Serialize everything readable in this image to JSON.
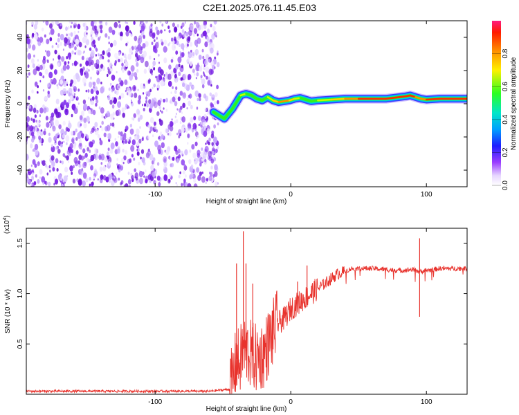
{
  "page": {
    "title": "C2E1.2025.076.11.45.E03"
  },
  "chart_data": [
    {
      "type": "heatmap",
      "title": "C2E1.2025.076.11.45.E03",
      "xlabel": "Height of straight line (km)",
      "ylabel": "Frequency (Hz)",
      "xlim": [
        -195,
        130
      ],
      "ylim": [
        -50,
        50
      ],
      "xticks": [
        -100,
        0,
        100
      ],
      "xtick_labels": [
        "-100",
        "0",
        "100"
      ],
      "yticks": [
        -40,
        -20,
        0,
        20,
        40
      ],
      "ytick_labels": [
        "-40",
        "-20",
        "0",
        "20",
        "40"
      ],
      "grid": false,
      "noise_region_x": [
        -195,
        -55
      ],
      "noise_color": "#7a22e6",
      "ridge": {
        "x": [
          -57,
          -53,
          -49,
          -46,
          -43,
          -40,
          -37,
          -33,
          -29,
          -25,
          -21,
          -17,
          -13,
          -9,
          -5,
          -1,
          3,
          7,
          11,
          15,
          20,
          30,
          40,
          50,
          60,
          70,
          80,
          85,
          88,
          92,
          96,
          100,
          110,
          120,
          130
        ],
        "y": [
          -5,
          -7,
          -9,
          -6,
          -3,
          1,
          5,
          6,
          5,
          3,
          2,
          4,
          2,
          1,
          1.5,
          2,
          3,
          3.5,
          2.5,
          1.5,
          2,
          2.5,
          3,
          3,
          3,
          3,
          4,
          4.5,
          5,
          4,
          3,
          2.5,
          3,
          3,
          3
        ],
        "amplitude": [
          0.45,
          0.55,
          0.5,
          0.55,
          0.6,
          0.55,
          0.6,
          0.6,
          0.55,
          0.6,
          0.55,
          0.6,
          0.7,
          0.85,
          0.9,
          0.85,
          0.7,
          0.55,
          0.5,
          0.55,
          0.6,
          0.7,
          0.8,
          0.9,
          0.95,
          0.95,
          0.95,
          0.95,
          1.0,
          0.9,
          0.85,
          0.9,
          0.95,
          0.95,
          0.95
        ]
      },
      "colorbar": {
        "label": "Normalized spectral amplitude",
        "range": [
          0,
          1
        ],
        "ticks": [
          0.0,
          0.2,
          0.4,
          0.6,
          0.8
        ],
        "tick_labels": [
          "0.0",
          "0.2",
          "0.4",
          "0.6",
          "0.8"
        ]
      }
    },
    {
      "type": "line",
      "xlabel": "Height of straight line (km)",
      "ylabel": "SNR (10 * v/v)",
      "y_multiplier": "(x10",
      "y_multiplier_exp": "4",
      "y_multiplier_close": ")",
      "xlim": [
        -195,
        130
      ],
      "ylim": [
        0,
        1.65
      ],
      "xticks": [
        -100,
        0,
        100
      ],
      "xtick_labels": [
        "-100",
        "0",
        "100"
      ],
      "yticks": [
        0.5,
        1.0,
        1.5
      ],
      "ytick_labels": [
        "0.5",
        "1.0",
        "1.5"
      ],
      "grid": false,
      "line_color": "#e8322c",
      "series": [
        {
          "x": [
            -195,
            -150,
            -100,
            -60,
            -45,
            -42,
            -40,
            -38,
            -35,
            -30,
            -25,
            -20,
            -15,
            -10,
            -5,
            0,
            5,
            10,
            15,
            20,
            25,
            30,
            35,
            40,
            45,
            50,
            60,
            70,
            80,
            90,
            95,
            100,
            110,
            120,
            130
          ],
          "y": [
            0.03,
            0.03,
            0.03,
            0.03,
            0.05,
            0.2,
            0.35,
            0.3,
            0.45,
            0.4,
            0.35,
            0.4,
            0.55,
            0.7,
            0.75,
            0.85,
            0.9,
            0.95,
            1.0,
            1.05,
            1.1,
            1.15,
            1.2,
            1.22,
            1.25,
            1.25,
            1.25,
            1.24,
            1.23,
            1.24,
            1.22,
            1.23,
            1.25,
            1.25,
            1.25
          ]
        }
      ],
      "spikes": [
        {
          "x": -40,
          "y": 1.3
        },
        {
          "x": -35,
          "y": 1.62
        },
        {
          "x": -33,
          "y": 1.3
        },
        {
          "x": -28,
          "y": 1.1
        },
        {
          "x": 5,
          "y": 1.12
        },
        {
          "x": 12,
          "y": 1.28
        },
        {
          "x": 95,
          "y": 1.55
        },
        {
          "x": 95,
          "y": 0.77
        }
      ]
    }
  ]
}
